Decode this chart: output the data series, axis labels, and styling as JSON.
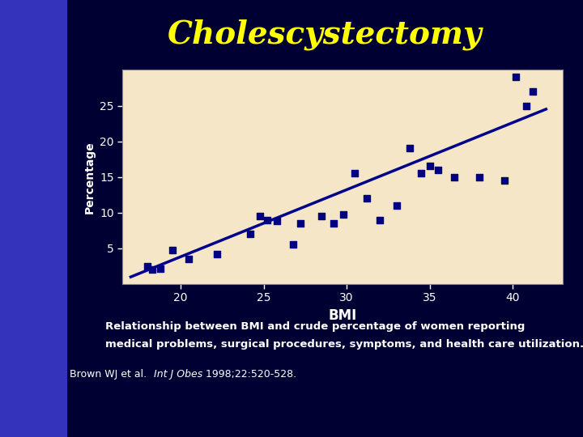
{
  "title": "Cholescystectomy",
  "title_color": "#FFFF00",
  "title_fontsize": 28,
  "bg_outer": "#000033",
  "bg_left_strip": "#3333BB",
  "plot_bg": "#F5E6C8",
  "scatter_color": "#000080",
  "line_color": "#00008B",
  "xlabel": "BMI",
  "ylabel": "Percentage",
  "xlabel_color": "white",
  "ylabel_color": "white",
  "tick_color": "white",
  "tick_labelsize": 10,
  "xlim": [
    16.5,
    43
  ],
  "ylim": [
    0,
    30
  ],
  "xticks": [
    20,
    25,
    30,
    35,
    40
  ],
  "yticks": [
    5,
    10,
    15,
    20,
    25
  ],
  "scatter_x": [
    18.0,
    18.3,
    18.8,
    19.5,
    20.5,
    22.2,
    24.2,
    24.8,
    25.2,
    25.8,
    26.8,
    27.2,
    28.5,
    29.2,
    29.8,
    30.5,
    31.2,
    32.0,
    33.0,
    33.8,
    34.5,
    35.0,
    35.5,
    36.5,
    38.0,
    39.5,
    40.2,
    40.8,
    41.2
  ],
  "scatter_y": [
    2.5,
    2.0,
    2.2,
    4.8,
    3.5,
    4.2,
    7.0,
    9.5,
    9.0,
    8.8,
    5.5,
    8.5,
    9.5,
    8.5,
    9.8,
    15.5,
    12.0,
    9.0,
    11.0,
    19.0,
    15.5,
    16.5,
    16.0,
    15.0,
    15.0,
    14.5,
    29.0,
    25.0,
    27.0
  ],
  "line_x": [
    17.0,
    42.0
  ],
  "line_y": [
    1.0,
    24.5
  ],
  "annotation_line1": "Relationship between BMI and crude percentage of women reporting",
  "annotation_line2": "medical problems, surgical procedures, symptoms, and health care utilization.",
  "ref_normal1": "Brown WJ et al.  ",
  "ref_italic": "Int J Obes",
  "ref_normal2": " 1998;22:520-528.",
  "annotation_color": "white",
  "annotation_fontsize": 9.5,
  "reference_fontsize": 9
}
